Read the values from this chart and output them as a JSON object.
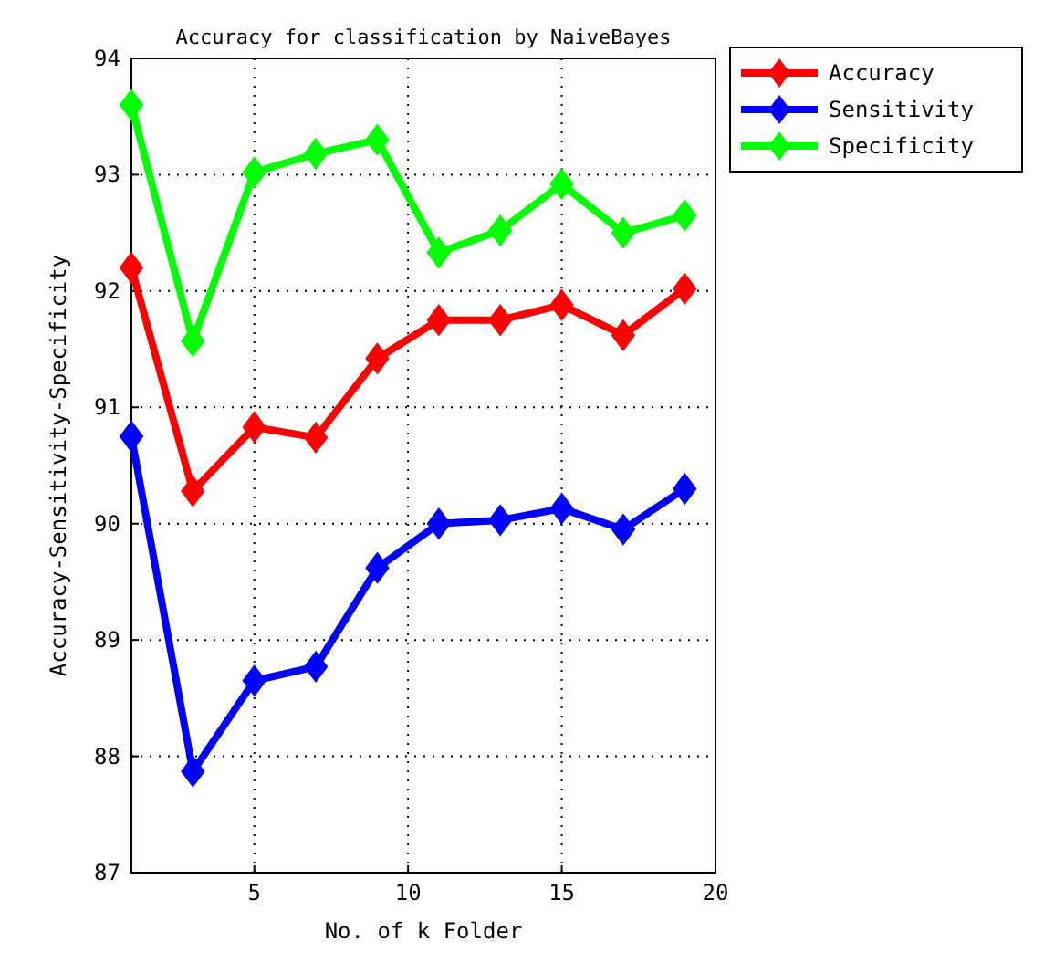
{
  "chart_data": {
    "type": "line",
    "title": "Accuracy for classification by NaiveBayes",
    "xlabel": "No. of k Folder",
    "ylabel": "Accuracy-Sensitivity-Specificity",
    "x": [
      1,
      3,
      5,
      7,
      9,
      11,
      13,
      15,
      17,
      19
    ],
    "series": [
      {
        "name": "Accuracy",
        "color": "#ff0000",
        "values": [
          92.2,
          90.28,
          90.83,
          90.74,
          91.42,
          91.75,
          91.75,
          91.88,
          91.62,
          92.02
        ]
      },
      {
        "name": "Sensitivity",
        "color": "#0000ff",
        "values": [
          90.75,
          87.87,
          88.65,
          88.77,
          89.62,
          90.0,
          90.03,
          90.13,
          89.95,
          90.3
        ]
      },
      {
        "name": "Specificity",
        "color": "#00ff00",
        "values": [
          93.6,
          91.57,
          93.02,
          93.18,
          93.3,
          92.33,
          92.52,
          92.92,
          92.5,
          92.65
        ]
      }
    ],
    "xlim": [
      1,
      20
    ],
    "xticks": [
      5,
      10,
      15,
      20
    ],
    "ylim": [
      87,
      94
    ],
    "yticks": [
      87,
      88,
      89,
      90,
      91,
      92,
      93,
      94
    ],
    "grid": true,
    "legend": "top right",
    "marker": "diamond",
    "line_style": "solid"
  }
}
